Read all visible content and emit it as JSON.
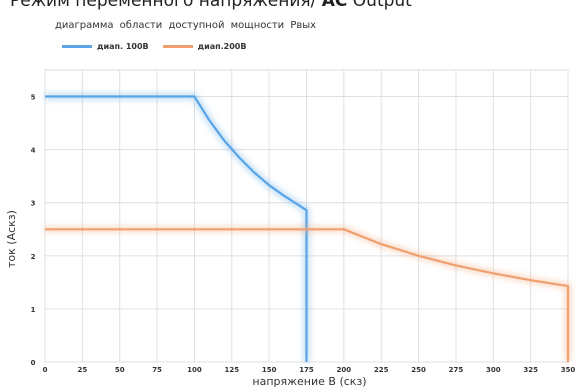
{
  "header": {
    "text_normal": "Режим переменного напряжения/ ",
    "text_bold": "AC",
    "text_tail": " Output"
  },
  "chart_data": {
    "type": "line",
    "title": "диаграмма  области  доступной мощности Pвых",
    "xlabel": "напряжение В (скз)",
    "ylabel": "ток (Аскз)",
    "xlim": [
      0,
      350
    ],
    "ylim": [
      0,
      5.5
    ],
    "xticks": [
      0,
      25,
      50,
      75,
      100,
      125,
      150,
      175,
      200,
      225,
      250,
      275,
      300,
      325,
      350
    ],
    "yticks": [
      0,
      1,
      2,
      3,
      4,
      5
    ],
    "grid": true,
    "legend_position": "top-left",
    "series": [
      {
        "name": "диап. 100В",
        "color": "#5aa5e6",
        "x": [
          0,
          100,
          110,
          120,
          130,
          140,
          150,
          160,
          175,
          175
        ],
        "y": [
          5,
          5,
          4.55,
          4.17,
          3.85,
          3.57,
          3.33,
          3.13,
          2.86,
          0
        ]
      },
      {
        "name": "диап.200В",
        "color": "#f0a070",
        "x": [
          0,
          200,
          225,
          250,
          275,
          300,
          325,
          350,
          350
        ],
        "y": [
          2.5,
          2.5,
          2.22,
          2.0,
          1.82,
          1.67,
          1.54,
          1.43,
          0
        ]
      }
    ]
  }
}
